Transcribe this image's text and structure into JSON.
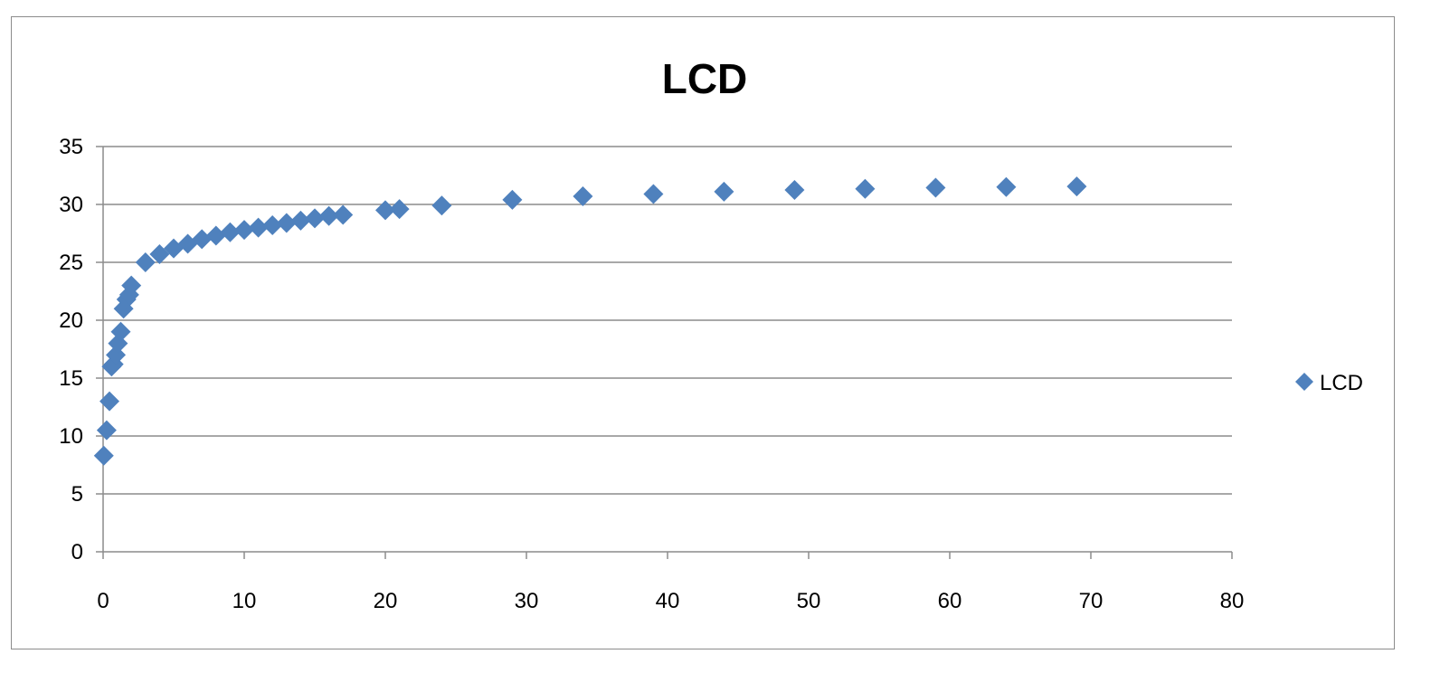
{
  "chart_data": {
    "type": "scatter",
    "title": "LCD",
    "xlabel": "",
    "ylabel": "",
    "xlim": [
      0,
      80
    ],
    "ylim": [
      0,
      35
    ],
    "x_ticks": [
      0,
      10,
      20,
      30,
      40,
      50,
      60,
      70,
      80
    ],
    "y_ticks": [
      0,
      5,
      10,
      15,
      20,
      25,
      30,
      35
    ],
    "grid": "horizontal",
    "legend": "right",
    "series": [
      {
        "name": "LCD",
        "color": "#4f81bd",
        "marker": "diamond",
        "points": [
          {
            "x": 0.05,
            "y": 8.3
          },
          {
            "x": 0.25,
            "y": 10.5
          },
          {
            "x": 0.45,
            "y": 13.0
          },
          {
            "x": 0.6,
            "y": 16.0
          },
          {
            "x": 0.75,
            "y": 16.2
          },
          {
            "x": 0.9,
            "y": 17.0
          },
          {
            "x": 1.05,
            "y": 18.0
          },
          {
            "x": 1.25,
            "y": 19.0
          },
          {
            "x": 1.45,
            "y": 21.0
          },
          {
            "x": 1.65,
            "y": 21.8
          },
          {
            "x": 1.85,
            "y": 22.2
          },
          {
            "x": 2.0,
            "y": 23.0
          },
          {
            "x": 3.0,
            "y": 25.0
          },
          {
            "x": 4.0,
            "y": 25.7
          },
          {
            "x": 5.0,
            "y": 26.2
          },
          {
            "x": 6.0,
            "y": 26.6
          },
          {
            "x": 7.0,
            "y": 27.0
          },
          {
            "x": 8.0,
            "y": 27.3
          },
          {
            "x": 9.0,
            "y": 27.6
          },
          {
            "x": 10.0,
            "y": 27.8
          },
          {
            "x": 11.0,
            "y": 28.0
          },
          {
            "x": 12.0,
            "y": 28.2
          },
          {
            "x": 13.0,
            "y": 28.4
          },
          {
            "x": 14.0,
            "y": 28.6
          },
          {
            "x": 15.0,
            "y": 28.8
          },
          {
            "x": 16.0,
            "y": 29.0
          },
          {
            "x": 17.0,
            "y": 29.1
          },
          {
            "x": 20.0,
            "y": 29.5
          },
          {
            "x": 21.0,
            "y": 29.6
          },
          {
            "x": 24.0,
            "y": 29.9
          },
          {
            "x": 29.0,
            "y": 30.4
          },
          {
            "x": 34.0,
            "y": 30.7
          },
          {
            "x": 39.0,
            "y": 30.9
          },
          {
            "x": 44.0,
            "y": 31.1
          },
          {
            "x": 49.0,
            "y": 31.25
          },
          {
            "x": 54.0,
            "y": 31.35
          },
          {
            "x": 59.0,
            "y": 31.45
          },
          {
            "x": 64.0,
            "y": 31.5
          },
          {
            "x": 69.0,
            "y": 31.55
          }
        ]
      }
    ]
  }
}
